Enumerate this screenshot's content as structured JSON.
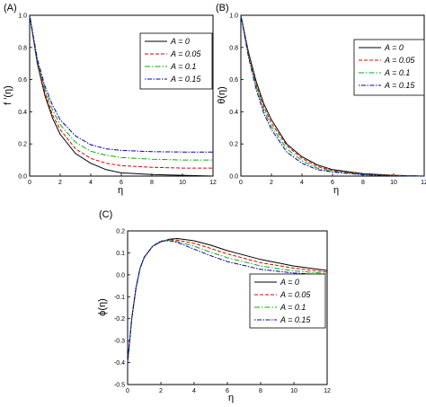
{
  "colors": {
    "A0": "#000000",
    "A005": "#e00000",
    "A01": "#00b000",
    "A015": "#0000c0"
  },
  "chart_data": [
    {
      "type": "line",
      "panel_label": "(A)",
      "xlabel": "η",
      "ylabel": "f ′(η)",
      "xlim": [
        0,
        12
      ],
      "ylim": [
        0,
        1.0
      ],
      "xticks": [
        "0",
        "2",
        "4",
        "6",
        "8",
        "10",
        "12"
      ],
      "yticks": [
        "0.0",
        "0.2",
        "0.4",
        "0.6",
        "0.8",
        "1.0"
      ],
      "legend_position": "top-right",
      "series": [
        {
          "name": "A = 0",
          "x": [
            0,
            0.5,
            1,
            1.5,
            2,
            3,
            4,
            5,
            6,
            8,
            10,
            12
          ],
          "y": [
            1.0,
            0.7,
            0.5,
            0.36,
            0.26,
            0.14,
            0.08,
            0.04,
            0.02,
            0.01,
            0.005,
            0.0
          ]
        },
        {
          "name": "A = 0.05",
          "x": [
            0,
            0.5,
            1,
            1.5,
            2,
            3,
            4,
            5,
            6,
            8,
            10,
            12
          ],
          "y": [
            1.0,
            0.71,
            0.52,
            0.38,
            0.29,
            0.17,
            0.11,
            0.08,
            0.065,
            0.055,
            0.05,
            0.05
          ]
        },
        {
          "name": "A = 0.1",
          "x": [
            0,
            0.5,
            1,
            1.5,
            2,
            3,
            4,
            5,
            6,
            8,
            10,
            12
          ],
          "y": [
            1.0,
            0.72,
            0.54,
            0.41,
            0.32,
            0.21,
            0.155,
            0.13,
            0.115,
            0.105,
            0.1,
            0.1
          ]
        },
        {
          "name": "A = 0.15",
          "x": [
            0,
            0.5,
            1,
            1.5,
            2,
            3,
            4,
            5,
            6,
            8,
            10,
            12
          ],
          "y": [
            1.0,
            0.73,
            0.56,
            0.44,
            0.35,
            0.25,
            0.195,
            0.17,
            0.16,
            0.152,
            0.15,
            0.15
          ]
        }
      ],
      "legend": [
        "A = 0",
        "A = 0.05",
        "A = 0.1",
        "A = 0.15"
      ]
    },
    {
      "type": "line",
      "panel_label": "(B)",
      "xlabel": "η",
      "ylabel": "θ(η)",
      "xlim": [
        0,
        12
      ],
      "ylim": [
        0,
        1.0
      ],
      "xticks": [
        "0",
        "2",
        "4",
        "6",
        "8",
        "10",
        "12"
      ],
      "yticks": [
        "0.0",
        "0.2",
        "0.4",
        "0.6",
        "0.8",
        "1.0"
      ],
      "legend_position": "top-right",
      "series": [
        {
          "name": "A = 0",
          "x": [
            0,
            0.5,
            1,
            1.5,
            2,
            3,
            4,
            5,
            6,
            8,
            10,
            12
          ],
          "y": [
            1.0,
            0.77,
            0.59,
            0.45,
            0.35,
            0.2,
            0.12,
            0.07,
            0.04,
            0.015,
            0.005,
            0.0
          ]
        },
        {
          "name": "A = 0.05",
          "x": [
            0,
            0.5,
            1,
            1.5,
            2,
            3,
            4,
            5,
            6,
            8,
            10,
            12
          ],
          "y": [
            1.0,
            0.76,
            0.57,
            0.43,
            0.33,
            0.19,
            0.11,
            0.06,
            0.035,
            0.012,
            0.004,
            0.0
          ]
        },
        {
          "name": "A = 0.1",
          "x": [
            0,
            0.5,
            1,
            1.5,
            2,
            3,
            4,
            5,
            6,
            8,
            10,
            12
          ],
          "y": [
            1.0,
            0.75,
            0.56,
            0.41,
            0.31,
            0.17,
            0.095,
            0.05,
            0.03,
            0.01,
            0.003,
            0.0
          ]
        },
        {
          "name": "A = 0.15",
          "x": [
            0,
            0.5,
            1,
            1.5,
            2,
            3,
            4,
            5,
            6,
            8,
            10,
            12
          ],
          "y": [
            1.0,
            0.74,
            0.54,
            0.39,
            0.29,
            0.15,
            0.08,
            0.04,
            0.025,
            0.008,
            0.002,
            0.0
          ]
        }
      ],
      "legend": [
        "A = 0",
        "A = 0.05",
        "A = 0.1",
        "A = 0.15"
      ]
    },
    {
      "type": "line",
      "panel_label": "(C)",
      "xlabel": "η",
      "ylabel": "ϕ(η)",
      "xlim": [
        0,
        12
      ],
      "ylim": [
        -0.5,
        0.2
      ],
      "xticks": [
        "0",
        "2",
        "4",
        "6",
        "8",
        "10",
        "12"
      ],
      "yticks": [
        "-0.5",
        "-0.4",
        "-0.3",
        "-0.2",
        "-0.1",
        "0.0",
        "0.1",
        "0.2"
      ],
      "legend_position": "center-right",
      "series": [
        {
          "name": "A = 0",
          "x": [
            0,
            0.25,
            0.5,
            0.75,
            1,
            1.5,
            2,
            2.5,
            3,
            4,
            5,
            6,
            8,
            10,
            12
          ],
          "y": [
            -0.4,
            -0.2,
            -0.06,
            0.03,
            0.08,
            0.13,
            0.15,
            0.162,
            0.165,
            0.155,
            0.135,
            0.11,
            0.07,
            0.04,
            0.02
          ]
        },
        {
          "name": "A = 0.05",
          "x": [
            0,
            0.25,
            0.5,
            0.75,
            1,
            1.5,
            2,
            2.5,
            3,
            4,
            5,
            6,
            8,
            10,
            12
          ],
          "y": [
            -0.4,
            -0.2,
            -0.06,
            0.03,
            0.08,
            0.13,
            0.152,
            0.16,
            0.158,
            0.143,
            0.12,
            0.095,
            0.055,
            0.03,
            0.012
          ]
        },
        {
          "name": "A = 0.1",
          "x": [
            0,
            0.25,
            0.5,
            0.75,
            1,
            1.5,
            2,
            2.5,
            3,
            4,
            5,
            6,
            8,
            10,
            12
          ],
          "y": [
            -0.4,
            -0.2,
            -0.06,
            0.03,
            0.08,
            0.13,
            0.153,
            0.157,
            0.152,
            0.13,
            0.103,
            0.078,
            0.04,
            0.018,
            0.005
          ]
        },
        {
          "name": "A = 0.15",
          "x": [
            0,
            0.25,
            0.5,
            0.75,
            1,
            1.5,
            2,
            2.5,
            3,
            4,
            5,
            6,
            8,
            10,
            12
          ],
          "y": [
            -0.4,
            -0.2,
            -0.06,
            0.03,
            0.08,
            0.13,
            0.154,
            0.155,
            0.147,
            0.117,
            0.087,
            0.06,
            0.025,
            0.008,
            0.0
          ]
        }
      ],
      "legend": [
        "A = 0",
        "A = 0.05",
        "A = 0.1",
        "A = 0.15"
      ]
    }
  ]
}
